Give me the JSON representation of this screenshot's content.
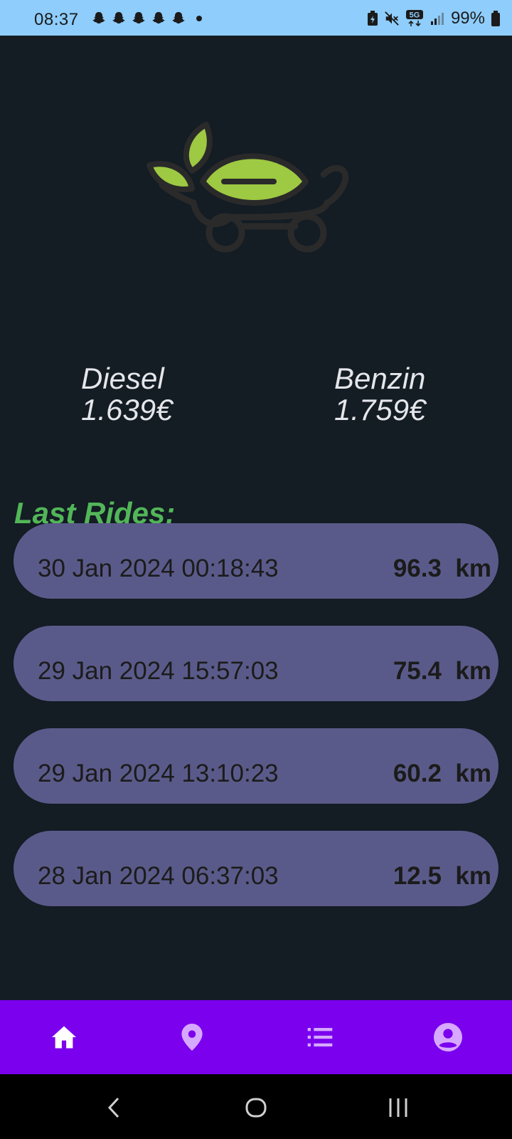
{
  "status_bar": {
    "time": "08:37",
    "notifications": [
      "snapchat-icon",
      "snapchat-icon",
      "snapchat-icon",
      "snapchat-icon",
      "snapchat-icon"
    ],
    "network": "5G",
    "battery": "99%"
  },
  "fuel_prices": {
    "diesel": {
      "label": "Diesel",
      "price": "1.639€"
    },
    "benzin": {
      "label": "Benzin",
      "price": "1.759€"
    }
  },
  "last_rides": {
    "title": "Last Rides:",
    "items": [
      {
        "date": "30 Jan 2024 00:18:43",
        "distance": "96.3  km"
      },
      {
        "date": "29 Jan 2024 15:57:03",
        "distance": "75.4  km"
      },
      {
        "date": "29 Jan 2024 13:10:23",
        "distance": "60.2  km"
      },
      {
        "date": "28 Jan 2024 06:37:03",
        "distance": "12.5  km"
      }
    ]
  },
  "bottom_nav": {
    "items": [
      {
        "icon": "home-icon",
        "active": true
      },
      {
        "icon": "location-pin-icon",
        "active": false
      },
      {
        "icon": "list-icon",
        "active": false
      },
      {
        "icon": "account-circle-icon",
        "active": false
      }
    ]
  },
  "colors": {
    "background": "#141c24",
    "accent_green": "#52b658",
    "ride_card": "#5a5a8a",
    "nav_bar": "#7a00ee",
    "status_bar": "#8ecdfc"
  }
}
